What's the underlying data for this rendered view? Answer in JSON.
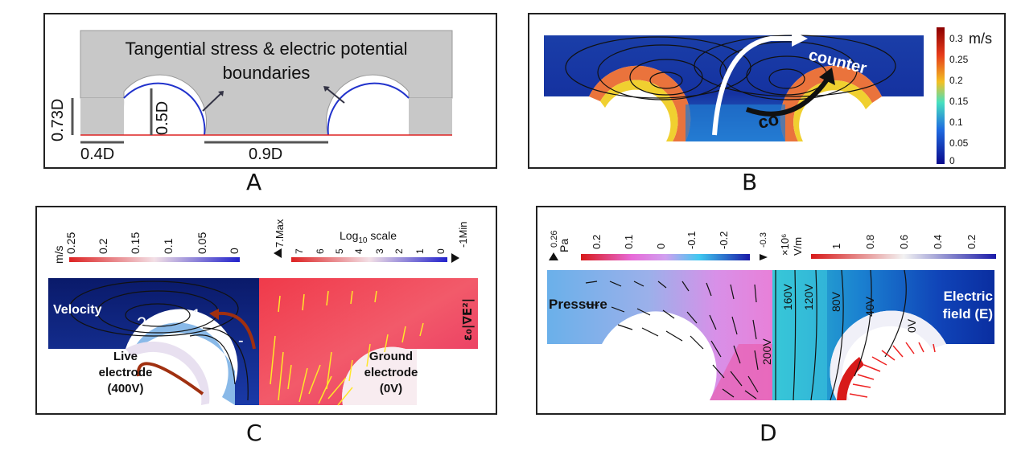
{
  "panels": {
    "A": {
      "label": "A",
      "boundary_text_line1": "Tangential stress & electric potential",
      "boundary_text_line2": "boundaries",
      "dim_height": "0.73D",
      "dim_radius": "0.5D",
      "dim_step": "0.4D",
      "dim_gap": "0.9D"
    },
    "B": {
      "label": "B",
      "unit": "m/s",
      "colorbar_ticks": [
        "0.3",
        "0.25",
        "0.2",
        "0.15",
        "0.1",
        "0.05",
        "0"
      ],
      "arrow_counter": "counter",
      "arrow_co": "co"
    },
    "C": {
      "label": "C",
      "velocity_unit": "m/s",
      "velocity_ticks": [
        "0.25",
        "0.2",
        "0.15",
        "0.1",
        "0.05",
        "0"
      ],
      "max_label": "7.Max",
      "min_label": "-1Min",
      "log_scale_label": "Log",
      "log_scale_sub": "10",
      "log_scale_rest": " scale",
      "log_ticks": [
        "7",
        "6",
        "5",
        "4",
        "3",
        "2",
        "1",
        "0"
      ],
      "velocity_label": "Velocity",
      "num_2": "2",
      "num_1": "1",
      "plus": "+",
      "minus": "-",
      "live_line1": "Live",
      "live_line2": "electrode",
      "live_line3": "(400V)",
      "ground_line1": "Ground",
      "ground_line2": "electrode",
      "ground_line3": "(0V)",
      "field_symbol": "ε₀|∇E²|"
    },
    "D": {
      "label": "D",
      "pressure_unit": "Pa",
      "pressure_max": "0.26",
      "pressure_ticks": [
        "0.2",
        "0.1",
        "0",
        "-0.1",
        "-0.2"
      ],
      "pressure_min": "-0.3",
      "field_unit1": "×10⁶",
      "field_unit2": "V/m",
      "field_ticks": [
        "1",
        "0.8",
        "0.6",
        "0.4",
        "0.2"
      ],
      "pressure_label": "Pressure",
      "field_label1": "Electric",
      "field_label2": "field (E)",
      "contours": [
        "200V",
        "160V",
        "120V",
        "80V",
        "40V",
        "0V"
      ]
    }
  }
}
